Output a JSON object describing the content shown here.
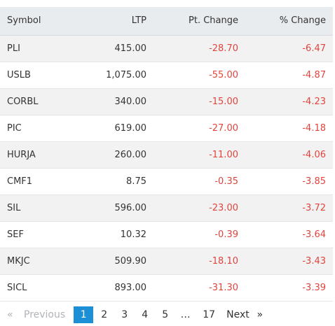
{
  "table": {
    "headers": {
      "symbol": "Symbol",
      "ltp": "LTP",
      "pt_change": "Pt. Change",
      "pct_change": "% Change"
    },
    "rows": [
      {
        "symbol": "PLI",
        "ltp": "415.00",
        "pt_change": "-28.70",
        "pct_change": "-6.47"
      },
      {
        "symbol": "USLB",
        "ltp": "1,075.00",
        "pt_change": "-55.00",
        "pct_change": "-4.87"
      },
      {
        "symbol": "CORBL",
        "ltp": "340.00",
        "pt_change": "-15.00",
        "pct_change": "-4.23"
      },
      {
        "symbol": "PIC",
        "ltp": "619.00",
        "pt_change": "-27.00",
        "pct_change": "-4.18"
      },
      {
        "symbol": "HURJA",
        "ltp": "260.00",
        "pt_change": "-11.00",
        "pct_change": "-4.06"
      },
      {
        "symbol": "CMF1",
        "ltp": "8.75",
        "pt_change": "-0.35",
        "pct_change": "-3.85"
      },
      {
        "symbol": "SIL",
        "ltp": "596.00",
        "pt_change": "-23.00",
        "pct_change": "-3.72"
      },
      {
        "symbol": "SEF",
        "ltp": "10.32",
        "pt_change": "-0.39",
        "pct_change": "-3.64"
      },
      {
        "symbol": "MKJC",
        "ltp": "509.90",
        "pt_change": "-18.10",
        "pct_change": "-3.43"
      },
      {
        "symbol": "SICL",
        "ltp": "893.00",
        "pt_change": "-31.30",
        "pct_change": "-3.39"
      }
    ]
  },
  "pagination": {
    "first_arrow": "«",
    "previous_label": "Previous",
    "pages": [
      "1",
      "2",
      "3",
      "4",
      "5"
    ],
    "active_page": "1",
    "ellipsis": "…",
    "last_page": "17",
    "next_label": "Next",
    "last_arrow": "»"
  },
  "colors": {
    "negative": "#e0443e",
    "header_bg": "#e9ecef",
    "active_page_bg": "#1b90d6"
  }
}
